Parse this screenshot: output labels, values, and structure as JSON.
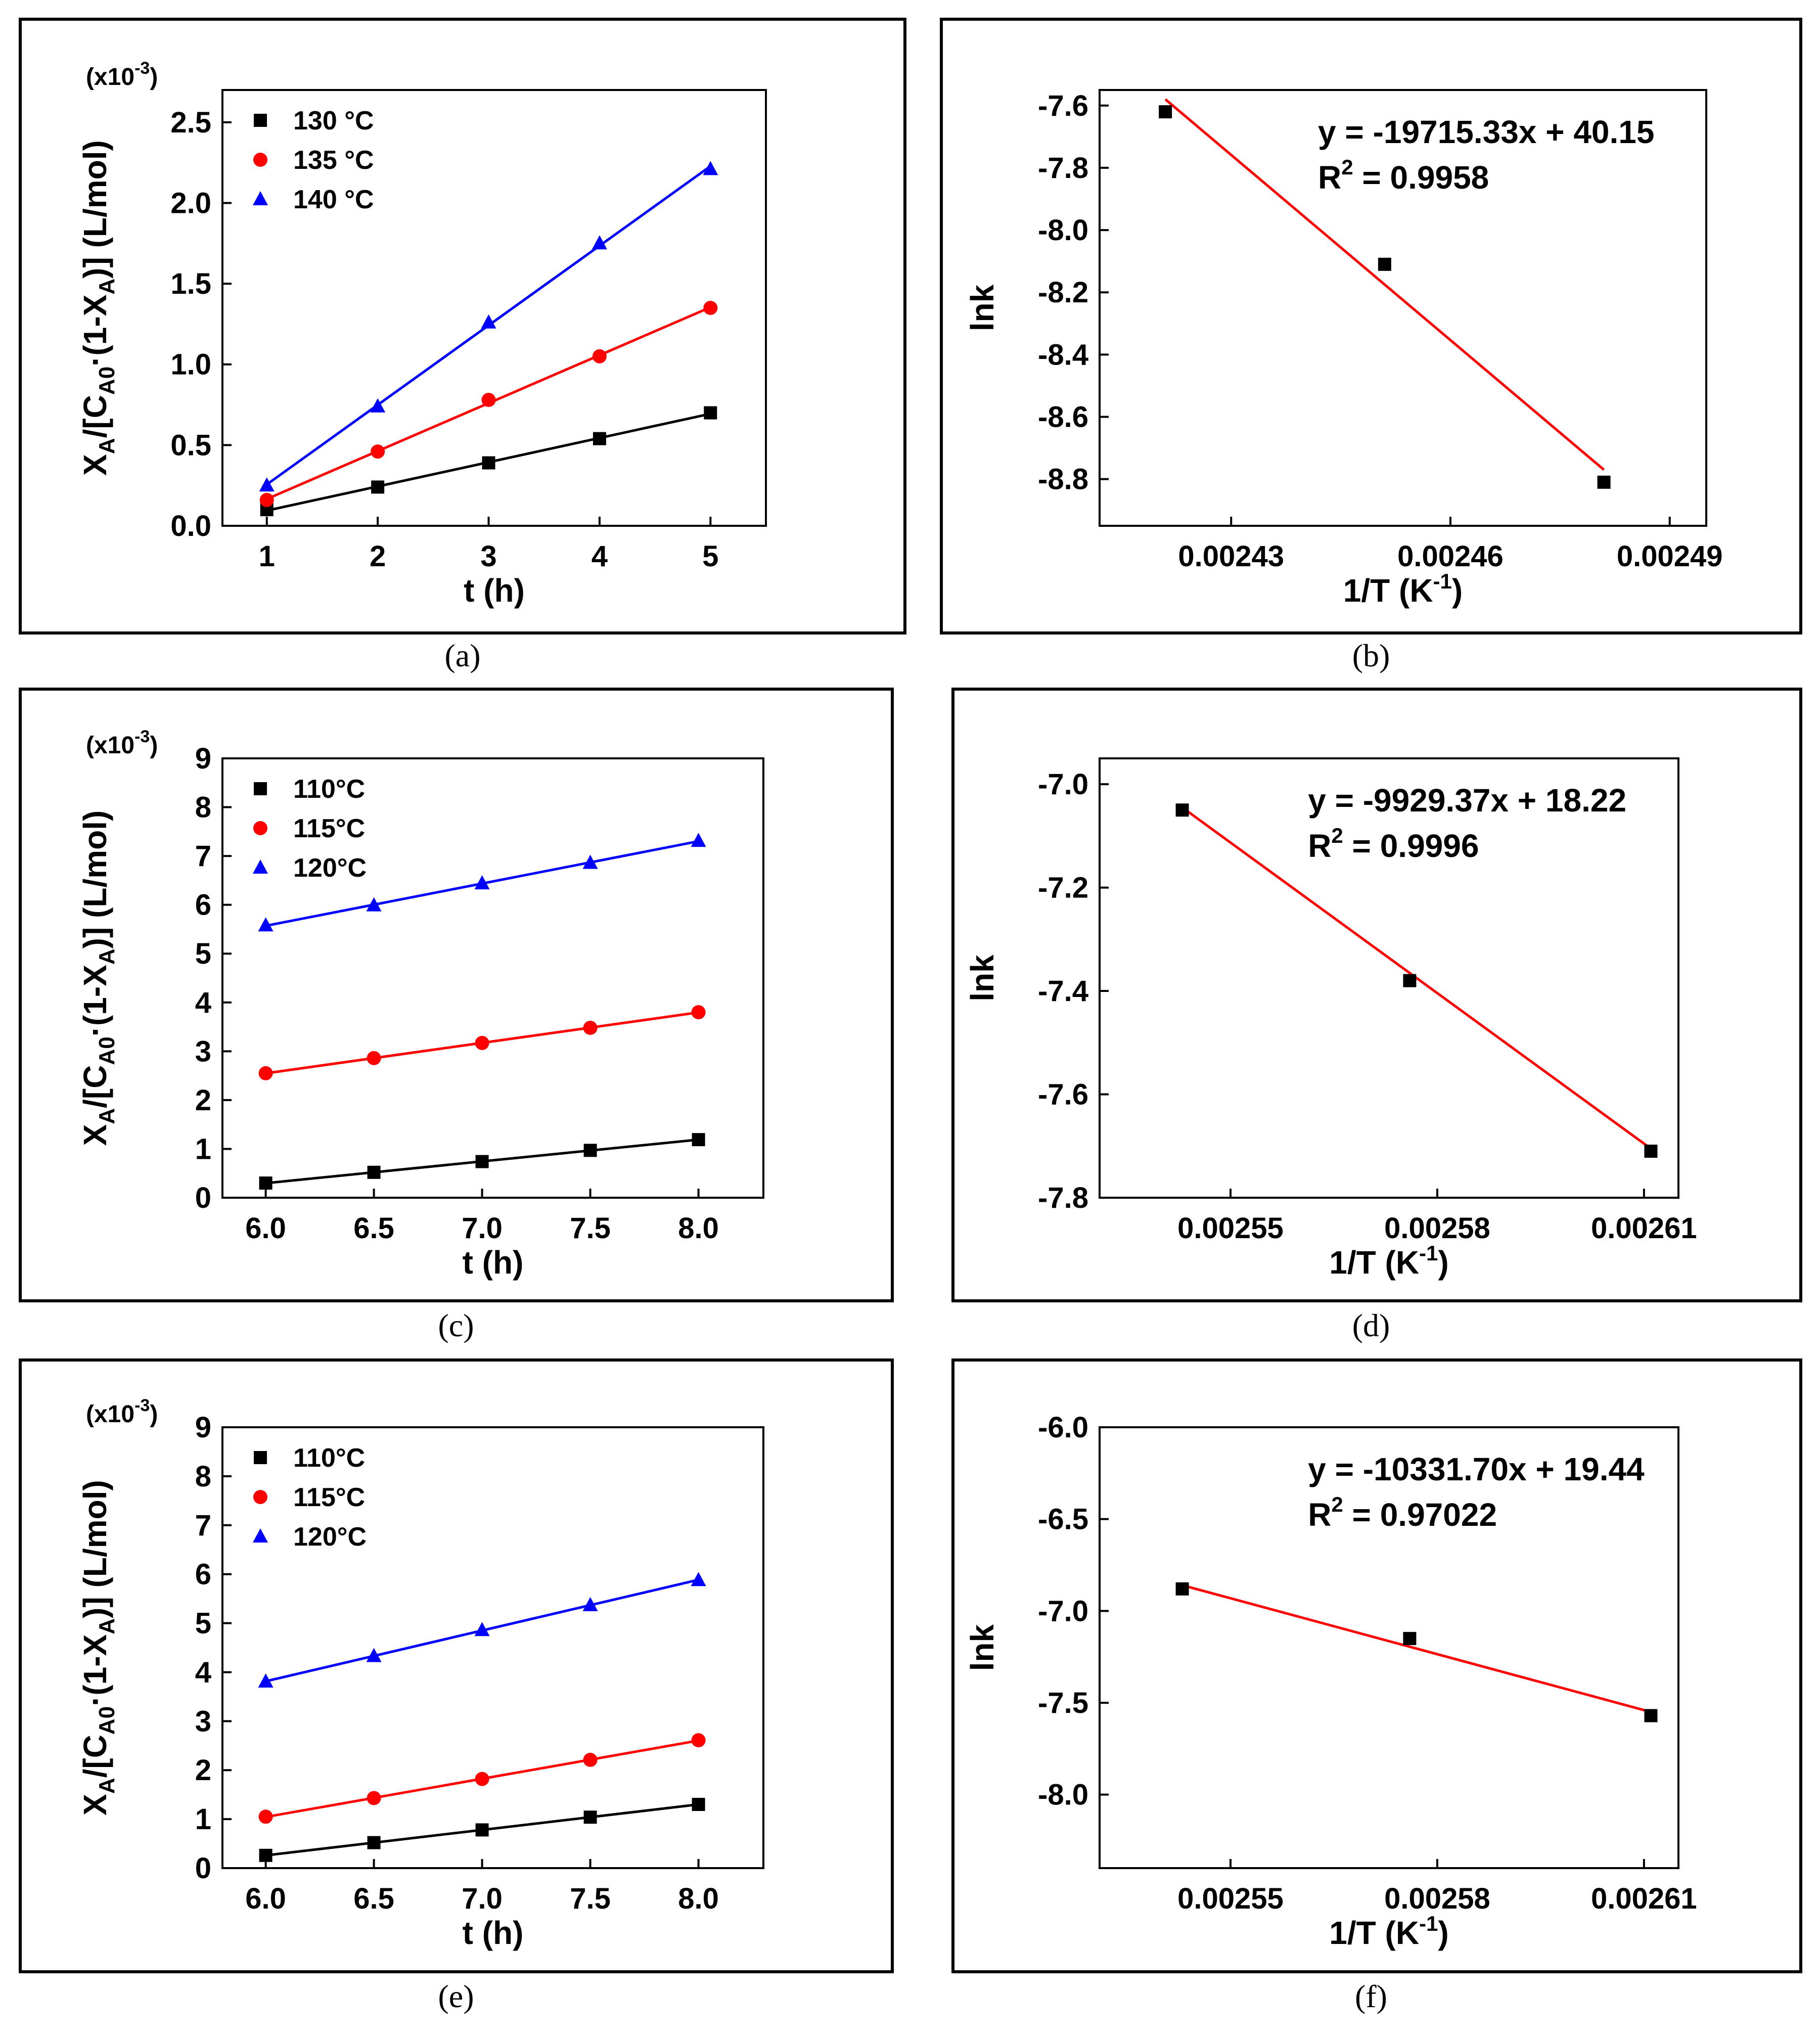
{
  "chart_data": [
    {
      "id": "a",
      "type": "scatter",
      "caption": "(a)",
      "xlabel": "t (h)",
      "ylabel_parts": {
        "x": "X",
        "x_sub": "A",
        "slash": "/[C",
        "c_sub": "A0",
        "mid": "·(1-X",
        "x2_sub": "A",
        "end": ")] (L/mol)"
      },
      "multiplier": "(x10",
      "multiplier_exp": "-3",
      "multiplier_close": ")",
      "xlim": [
        0.6,
        5.5
      ],
      "ylim": [
        0.0,
        2.7
      ],
      "xticks": [
        1,
        2,
        3,
        4,
        5
      ],
      "xtick_labels": [
        "1",
        "2",
        "3",
        "4",
        "5"
      ],
      "yticks": [
        0,
        0.5,
        1.0,
        1.5,
        2.0,
        2.5
      ],
      "ytick_labels": [
        "0.0",
        "0.5",
        "1.0",
        "1.5",
        "2.0",
        "2.5"
      ],
      "legend_position": "top-left",
      "series": [
        {
          "name": "130 °C",
          "color": "#000000",
          "marker": "square",
          "x": [
            1,
            2,
            3,
            4,
            5
          ],
          "y": [
            0.1,
            0.24,
            0.39,
            0.54,
            0.7
          ]
        },
        {
          "name": "135 °C",
          "color": "#ff0000",
          "marker": "circle",
          "x": [
            1,
            2,
            3,
            4,
            5
          ],
          "y": [
            0.16,
            0.46,
            0.78,
            1.05,
            1.35
          ]
        },
        {
          "name": "140 °C",
          "color": "#0000ff",
          "marker": "triangle",
          "x": [
            1,
            2,
            3,
            4,
            5
          ],
          "y": [
            0.25,
            0.74,
            1.26,
            1.75,
            2.21
          ]
        }
      ]
    },
    {
      "id": "b",
      "type": "scatter",
      "caption": "(b)",
      "xlabel": "1/T (K",
      "xlabel_exp": "-1",
      "xlabel_close": ")",
      "ylabel": "lnk",
      "xlim": [
        0.002412,
        0.002495
      ],
      "ylim": [
        -8.95,
        -7.55
      ],
      "xticks": [
        0.00243,
        0.00246,
        0.00249
      ],
      "xtick_labels": [
        "0.00243",
        "0.00246",
        "0.00249"
      ],
      "yticks": [
        -7.6,
        -7.8,
        -8.0,
        -8.2,
        -8.4,
        -8.6,
        -8.8
      ],
      "ytick_labels": [
        "-7.6",
        "-7.8",
        "-8.0",
        "-8.2",
        "-8.4",
        "-8.6",
        "-8.8"
      ],
      "points": {
        "color": "#000000",
        "marker": "square",
        "x": [
          0.002421,
          0.002451,
          0.002481
        ],
        "y": [
          -7.62,
          -8.11,
          -8.81
        ]
      },
      "fit": {
        "color": "#ff0000",
        "x": [
          0.002421,
          0.002481
        ],
        "y": [
          -7.58,
          -8.77
        ]
      },
      "equation": "y = -19715.33x + 40.15",
      "r2_label": "R",
      "r2_exp": "2",
      "r2_value": " = 0.9958"
    },
    {
      "id": "c",
      "type": "scatter",
      "caption": "(c)",
      "xlabel": "t (h)",
      "ylabel_parts": {
        "x": "X",
        "x_sub": "A",
        "slash": "/[C",
        "c_sub": "A0",
        "mid": "·(1-X",
        "x2_sub": "A",
        "end": ")] (L/mol)"
      },
      "multiplier": "(x10",
      "multiplier_exp": "-3",
      "multiplier_close": ")",
      "xlim": [
        5.8,
        8.3
      ],
      "ylim": [
        0,
        9
      ],
      "xticks": [
        6.0,
        6.5,
        7.0,
        7.5,
        8.0
      ],
      "xtick_labels": [
        "6.0",
        "6.5",
        "7.0",
        "7.5",
        "8.0"
      ],
      "yticks": [
        0,
        1,
        2,
        3,
        4,
        5,
        6,
        7,
        8,
        9
      ],
      "ytick_labels": [
        "0",
        "1",
        "2",
        "3",
        "4",
        "5",
        "6",
        "7",
        "8",
        "9"
      ],
      "legend_position": "top-left",
      "series": [
        {
          "name": "110°C",
          "color": "#000000",
          "marker": "square",
          "x": [
            6.0,
            6.5,
            7.0,
            7.5,
            8.0
          ],
          "y": [
            0.3,
            0.52,
            0.74,
            0.97,
            1.19
          ]
        },
        {
          "name": "115°C",
          "color": "#ff0000",
          "marker": "circle",
          "x": [
            6.0,
            6.5,
            7.0,
            7.5,
            8.0
          ],
          "y": [
            2.55,
            2.86,
            3.17,
            3.48,
            3.8
          ]
        },
        {
          "name": "120°C",
          "color": "#0000ff",
          "marker": "triangle",
          "x": [
            6.0,
            6.5,
            7.0,
            7.5,
            8.0
          ],
          "y": [
            5.58,
            5.99,
            6.44,
            6.86,
            7.31
          ]
        }
      ]
    },
    {
      "id": "d",
      "type": "scatter",
      "caption": "(d)",
      "xlabel": "1/T (K",
      "xlabel_exp": "-1",
      "xlabel_close": ")",
      "ylabel": "lnk",
      "xlim": [
        0.002531,
        0.002615
      ],
      "ylim": [
        -7.8,
        -6.95
      ],
      "xticks": [
        0.00255,
        0.00258,
        0.00261
      ],
      "xtick_labels": [
        "0.00255",
        "0.00258",
        "0.00261"
      ],
      "yticks": [
        -7.0,
        -7.2,
        -7.4,
        -7.6,
        -7.8
      ],
      "ytick_labels": [
        "-7.0",
        "-7.2",
        "-7.4",
        "-7.6",
        "-7.8"
      ],
      "points": {
        "color": "#000000",
        "marker": "square",
        "x": [
          0.002543,
          0.002576,
          0.002611
        ],
        "y": [
          -7.05,
          -7.38,
          -7.71
        ]
      },
      "fit": {
        "color": "#ff0000",
        "x": [
          0.002543,
          0.002611
        ],
        "y": [
          -7.045,
          -7.705
        ]
      },
      "equation": "y = -9929.37x + 18.22",
      "r2_label": "R",
      "r2_exp": "2",
      "r2_value": " = 0.9996"
    },
    {
      "id": "e",
      "type": "scatter",
      "caption": "(e)",
      "xlabel": "t (h)",
      "ylabel_parts": {
        "x": "X",
        "x_sub": "A",
        "slash": "/[C",
        "c_sub": "A0",
        "mid": "·(1-X",
        "x2_sub": "A",
        "end": ")] (L/mol)"
      },
      "multiplier": "(x10",
      "multiplier_exp": "-3",
      "multiplier_close": ")",
      "xlim": [
        5.8,
        8.3
      ],
      "ylim": [
        0,
        9
      ],
      "xticks": [
        6.0,
        6.5,
        7.0,
        7.5,
        8.0
      ],
      "xtick_labels": [
        "6.0",
        "6.5",
        "7.0",
        "7.5",
        "8.0"
      ],
      "yticks": [
        0,
        1,
        2,
        3,
        4,
        5,
        6,
        7,
        8,
        9
      ],
      "ytick_labels": [
        "0",
        "1",
        "2",
        "3",
        "4",
        "5",
        "6",
        "7",
        "8",
        "9"
      ],
      "legend_position": "top-left",
      "series": [
        {
          "name": "110°C",
          "color": "#000000",
          "marker": "square",
          "x": [
            6.0,
            6.5,
            7.0,
            7.5,
            8.0
          ],
          "y": [
            0.26,
            0.52,
            0.78,
            1.04,
            1.3
          ]
        },
        {
          "name": "115°C",
          "color": "#ff0000",
          "marker": "circle",
          "x": [
            6.0,
            6.5,
            7.0,
            7.5,
            8.0
          ],
          "y": [
            1.05,
            1.43,
            1.82,
            2.21,
            2.61
          ]
        },
        {
          "name": "120°C",
          "color": "#0000ff",
          "marker": "triangle",
          "x": [
            6.0,
            6.5,
            7.0,
            7.5,
            8.0
          ],
          "y": [
            3.81,
            4.33,
            4.86,
            5.37,
            5.88
          ]
        }
      ]
    },
    {
      "id": "f",
      "type": "scatter",
      "caption": "(f)",
      "xlabel": "1/T (K",
      "xlabel_exp": "-1",
      "xlabel_close": ")",
      "ylabel": "lnk",
      "xlim": [
        0.002531,
        0.002615
      ],
      "ylim": [
        -8.4,
        -6.0
      ],
      "xticks": [
        0.00255,
        0.00258,
        0.00261
      ],
      "xtick_labels": [
        "0.00255",
        "0.00258",
        "0.00261"
      ],
      "yticks": [
        -6.0,
        -6.5,
        -7.0,
        -7.5,
        -8.0
      ],
      "ytick_labels": [
        "-6.0",
        "-6.5",
        "-7.0",
        "-7.5",
        "-8.0"
      ],
      "points": {
        "color": "#000000",
        "marker": "square",
        "x": [
          0.002543,
          0.002576,
          0.002611
        ],
        "y": [
          -6.88,
          -7.15,
          -7.57
        ]
      },
      "fit": {
        "color": "#ff0000",
        "x": [
          0.002543,
          0.002611
        ],
        "y": [
          -6.86,
          -7.55
        ]
      },
      "equation": "y = -10331.70x + 19.44",
      "r2_label": "R",
      "r2_exp": "2",
      "r2_value": " = 0.97022"
    }
  ]
}
